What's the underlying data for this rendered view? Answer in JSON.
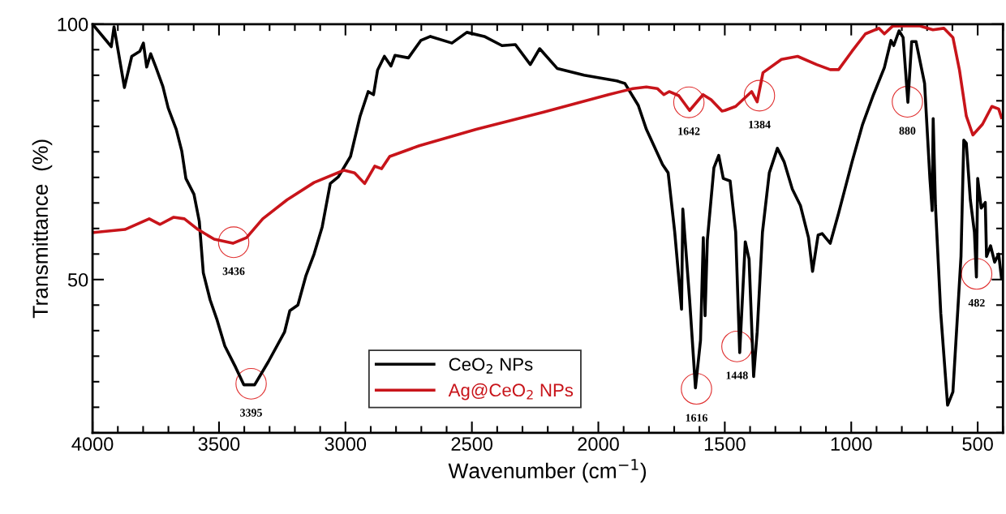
{
  "chart_data": {
    "type": "line",
    "xlabel": "Wavenumber (cm$^{−1}$)",
    "ylabel": "Transmittance  (%)",
    "xlim": [
      4000,
      400
    ],
    "ylim": [
      20,
      100
    ],
    "xticks": [
      4000,
      3500,
      3000,
      2500,
      2000,
      1500,
      1000,
      500
    ],
    "yticks": [
      50,
      100
    ],
    "grid": false,
    "legend": "bottom",
    "marker": "none",
    "line_style": "solid",
    "series": [
      {
        "name": "CeO$_{2}$ NPs",
        "color": "#000000",
        "x": [
          4000,
          3926,
          3915,
          3874,
          3845,
          3813,
          3799,
          3786,
          3770,
          3749,
          3722,
          3701,
          3669,
          3647,
          3631,
          3599,
          3578,
          3562,
          3535,
          3509,
          3477,
          3434,
          3402,
          3359,
          3305,
          3241,
          3220,
          3188,
          3156,
          3124,
          3092,
          3060,
          3028,
          2980,
          2942,
          2910,
          2889,
          2873,
          2846,
          2820,
          2804,
          2751,
          2702,
          2664,
          2579,
          2520,
          2451,
          2381,
          2328,
          2269,
          2232,
          2162,
          2056,
          1927,
          1895,
          1842,
          1810,
          1746,
          1724,
          1698,
          1671,
          1666,
          1639,
          1616,
          1596,
          1585,
          1578,
          1569,
          1543,
          1524,
          1506,
          1479,
          1457,
          1441,
          1419,
          1404,
          1386,
          1372,
          1351,
          1324,
          1292,
          1265,
          1233,
          1201,
          1169,
          1153,
          1131,
          1115,
          1083,
          1050,
          997,
          955,
          912,
          869,
          843,
          832,
          811,
          795,
          776,
          761,
          744,
          710,
          689,
          680,
          676,
          667,
          646,
          619,
          598,
          566,
          555,
          545,
          529,
          513,
          505,
          500,
          486,
          470,
          465,
          449,
          433,
          417,
          406
        ],
        "values": [
          100,
          95.6,
          99.5,
          87.6,
          93.7,
          94.7,
          96.3,
          91.6,
          94.2,
          91.5,
          87.8,
          83.6,
          79.4,
          75.1,
          69.8,
          66.7,
          61.4,
          51.3,
          46.0,
          42.3,
          37.0,
          32.8,
          29.4,
          29.4,
          33.9,
          39.7,
          43.9,
          45.0,
          50.8,
          55.0,
          60.3,
          68.8,
          70.1,
          74.1,
          82.0,
          86.8,
          86.2,
          91.0,
          93.7,
          91.8,
          93.9,
          93.4,
          96.8,
          97.6,
          96.3,
          98.4,
          97.6,
          95.8,
          96.0,
          92.1,
          95.2,
          91.3,
          90.0,
          88.9,
          88.4,
          84.1,
          79.4,
          72.5,
          70.9,
          59.3,
          44.2,
          63.8,
          46.0,
          28.8,
          38.1,
          58.2,
          42.9,
          57.7,
          71.9,
          74.3,
          69.8,
          69.3,
          59.3,
          35.7,
          57.4,
          54.0,
          31.0,
          39.7,
          59.3,
          70.9,
          75.7,
          73.0,
          67.7,
          64.5,
          58.2,
          51.6,
          58.7,
          59.0,
          57.1,
          63.0,
          73.0,
          80.4,
          86.2,
          91.5,
          96.8,
          95.8,
          98.7,
          97.4,
          84.7,
          96.6,
          96.6,
          88.4,
          69.8,
          63.5,
          81.5,
          64.5,
          43.4,
          25.4,
          28.0,
          54.5,
          77.3,
          76.7,
          65.6,
          59.3,
          50.5,
          69.8,
          64.0,
          65.1,
          54.5,
          56.6,
          53.4,
          55.0,
          50.3
        ]
      },
      {
        "name": "Ag@CeO$_{2}$ NPs",
        "color": "#c8141a",
        "x": [
          4000,
          3979,
          3872,
          3776,
          3733,
          3679,
          3637,
          3583,
          3519,
          3445,
          3391,
          3327,
          3231,
          3124,
          3006,
          2964,
          2924,
          2884,
          2857,
          2825,
          2708,
          2483,
          2216,
          1960,
          1863,
          1810,
          1767,
          1741,
          1720,
          1682,
          1639,
          1586,
          1554,
          1511,
          1500,
          1457,
          1394,
          1372,
          1349,
          1276,
          1212,
          1137,
          1083,
          1050,
          997,
          944,
          891,
          869,
          837,
          731,
          677,
          634,
          598,
          572,
          545,
          519,
          481,
          444,
          417,
          406
        ],
        "values": [
          59.2,
          59.3,
          59.8,
          61.9,
          60.8,
          62.2,
          61.9,
          59.8,
          57.9,
          57.1,
          58.2,
          61.9,
          65.6,
          69.0,
          71.4,
          70.9,
          68.8,
          72.2,
          71.7,
          74.1,
          76.2,
          79.4,
          82.8,
          86.2,
          87.4,
          87.7,
          87.4,
          86.2,
          86.8,
          86.0,
          83.1,
          86.2,
          85.2,
          83.0,
          83.1,
          83.9,
          86.8,
          84.8,
          90.5,
          93.1,
          93.7,
          92.1,
          91.1,
          91.1,
          94.7,
          98.1,
          99.2,
          98.1,
          99.6,
          99.7,
          98.9,
          99.2,
          97.4,
          91.0,
          82.0,
          78.3,
          80.4,
          83.9,
          83.4,
          81.7
        ]
      }
    ],
    "annotations": [
      {
        "text": "3436",
        "x": 3442,
        "y": 57.3
      },
      {
        "text": "3395",
        "x": 3373,
        "y": 29.6
      },
      {
        "text": "1642",
        "x": 1642,
        "y": 84.7
      },
      {
        "text": "1616",
        "x": 1612,
        "y": 28.6
      },
      {
        "text": "1448",
        "x": 1452,
        "y": 36.9
      },
      {
        "text": "1384",
        "x": 1363,
        "y": 86.0
      },
      {
        "text": "880",
        "x": 778,
        "y": 84.8
      },
      {
        "text": "482",
        "x": 504,
        "y": 51.1
      }
    ]
  }
}
